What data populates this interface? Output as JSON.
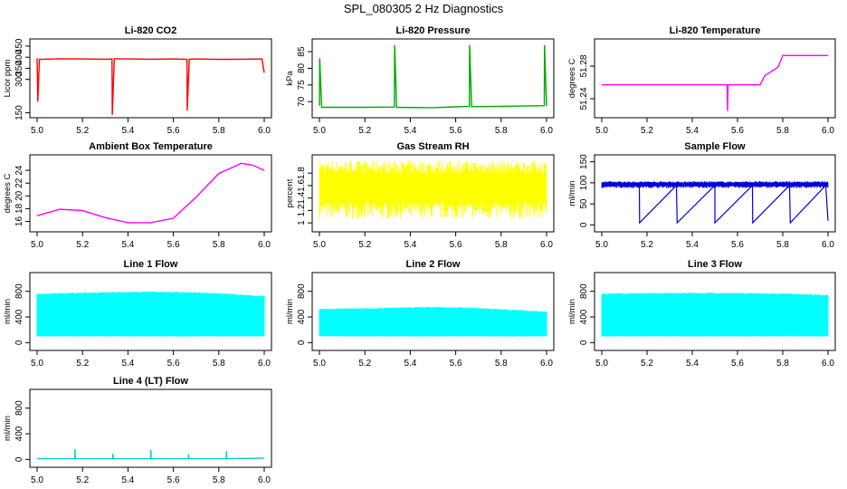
{
  "figure": {
    "title": "SPL_080305  2 Hz Diagnostics"
  },
  "chart_data": [
    {
      "type": "line",
      "title": "Li-820 CO2",
      "ylabel": "Licor ppm",
      "color": "#ff0000",
      "xlim": [
        5.0,
        6.0
      ],
      "ylim": [
        140,
        470
      ],
      "xticks": [
        "5.0",
        "5.2",
        "5.4",
        "5.6",
        "5.8",
        "6.0"
      ],
      "yticks": [
        150,
        300,
        350,
        400,
        450
      ],
      "series": [
        {
          "name": "CO2",
          "x": [
            5.0,
            5.003,
            5.01,
            5.1,
            5.2,
            5.3,
            5.33,
            5.331,
            5.34,
            5.4,
            5.5,
            5.6,
            5.66,
            5.661,
            5.67,
            5.7,
            5.8,
            5.9,
            5.99,
            6.0
          ],
          "y": [
            395,
            200,
            390,
            393,
            392,
            391,
            392,
            140,
            393,
            392,
            391,
            392,
            390,
            160,
            391,
            392,
            390,
            391,
            392,
            330
          ]
        }
      ]
    },
    {
      "type": "line",
      "title": "Li-820 Pressure",
      "ylabel": "kPa",
      "color": "#00aa00",
      "xlim": [
        5.0,
        6.0
      ],
      "ylim": [
        66,
        88
      ],
      "xticks": [
        "5.0",
        "5.2",
        "5.4",
        "5.6",
        "5.8",
        "6.0"
      ],
      "yticks": [
        70,
        75,
        80,
        85
      ],
      "series": [
        {
          "name": "Pressure",
          "x": [
            5.0,
            5.001,
            5.01,
            5.2,
            5.33,
            5.331,
            5.34,
            5.5,
            5.66,
            5.661,
            5.67,
            5.8,
            5.99,
            5.991,
            6.0
          ],
          "y": [
            68.8,
            83,
            68.3,
            68.3,
            68.4,
            87,
            68.3,
            68.2,
            68.6,
            87,
            68.5,
            68.6,
            68.8,
            87,
            68.7
          ]
        }
      ]
    },
    {
      "type": "line",
      "title": "Li-820 Temperature",
      "ylabel": "degrees C",
      "color": "#ff00ff",
      "xlim": [
        5.0,
        6.0
      ],
      "ylim": [
        51.22,
        51.31
      ],
      "xticks": [
        "5.0",
        "5.2",
        "5.4",
        "5.6",
        "5.8",
        "6.0"
      ],
      "yticks": [
        "51.24",
        "51.28"
      ],
      "series": [
        {
          "name": "Temperature",
          "x": [
            5.0,
            5.25,
            5.5,
            5.554,
            5.556,
            5.558,
            5.7,
            5.72,
            5.78,
            5.8,
            6.0
          ],
          "y": [
            51.257,
            51.257,
            51.257,
            51.257,
            51.225,
            51.257,
            51.257,
            51.268,
            51.279,
            51.293,
            51.293
          ]
        }
      ]
    },
    {
      "type": "line",
      "title": "Ambient Box Temperature",
      "ylabel": "degrees C",
      "color": "#ff00ff",
      "xlim": [
        5.0,
        6.0
      ],
      "ylim": [
        14.8,
        26
      ],
      "xticks": [
        "5.0",
        "5.2",
        "5.4",
        "5.6",
        "5.8",
        "6.0"
      ],
      "yticks": [
        16,
        18,
        20,
        22,
        24
      ],
      "series": [
        {
          "name": "Ambient Box Temperature",
          "x": [
            5.0,
            5.1,
            5.2,
            5.3,
            5.4,
            5.5,
            5.6,
            5.7,
            5.8,
            5.9,
            5.95,
            6.0
          ],
          "y": [
            16.9,
            17.9,
            17.7,
            16.6,
            15.8,
            15.8,
            16.5,
            19.8,
            23.5,
            25.1,
            24.8,
            24.0
          ]
        }
      ]
    },
    {
      "type": "line",
      "title": "Gas Stream RH",
      "ylabel": "percent",
      "color": "#ffff00",
      "xlim": [
        5.0,
        6.0
      ],
      "ylim": [
        0.9,
        2.05
      ],
      "xticks": [
        "5.0",
        "5.2",
        "5.4",
        "5.6",
        "5.8",
        "6.0"
      ],
      "yticks": [
        1.0,
        1.2,
        1.4,
        1.6,
        1.8
      ],
      "series": [
        {
          "name": "Gas Stream RH",
          "x": [
            5.0,
            5.2,
            5.4,
            5.6,
            5.8,
            6.0
          ],
          "y": [
            1.6,
            1.6,
            1.6,
            1.6,
            1.6,
            1.6
          ],
          "band": [
            1.2,
            1.9
          ]
        }
      ]
    },
    {
      "type": "line",
      "title": "Sample Flow",
      "ylabel": "ml/min",
      "color": "#0000dd",
      "xlim": [
        5.0,
        6.0
      ],
      "ylim": [
        -10,
        160
      ],
      "xticks": [
        "5.0",
        "5.2",
        "5.4",
        "5.6",
        "5.8",
        "6.0"
      ],
      "yticks": [
        0,
        50,
        100,
        150
      ],
      "series": [
        {
          "name": "Sample Flow",
          "x": [
            5.0,
            5.166,
            5.167,
            5.33,
            5.333,
            5.5,
            5.5,
            5.666,
            5.667,
            5.83,
            5.833,
            5.99,
            6.0
          ],
          "y": [
            94,
            94,
            5,
            94,
            5,
            94,
            5,
            94,
            5,
            94,
            5,
            94,
            10
          ],
          "band": [
            90,
            102
          ]
        }
      ]
    },
    {
      "type": "line",
      "title": "Line 1 Flow",
      "ylabel": "ml/min",
      "color": "#00ffff",
      "xlim": [
        5.0,
        6.0
      ],
      "ylim": [
        -80,
        1050
      ],
      "xticks": [
        "5.0",
        "5.2",
        "5.4",
        "5.6",
        "5.8",
        "6.0"
      ],
      "yticks": [
        0,
        400,
        800
      ],
      "series": [
        {
          "name": "Line 1 Flow",
          "x": [
            5.0,
            5.17,
            5.33,
            5.5,
            5.67,
            5.83,
            6.0
          ],
          "y": [
            760,
            770,
            780,
            790,
            780,
            760,
            720
          ],
          "low": 100
        }
      ]
    },
    {
      "type": "line",
      "title": "Line 2 Flow",
      "ylabel": "ml/min",
      "color": "#00ffff",
      "xlim": [
        5.0,
        6.0
      ],
      "ylim": [
        -80,
        1050
      ],
      "xticks": [
        "5.0",
        "5.2",
        "5.4",
        "5.6",
        "5.8",
        "6.0"
      ],
      "yticks": [
        0,
        400,
        800
      ],
      "series": [
        {
          "name": "Line 2 Flow",
          "x": [
            5.0,
            5.17,
            5.33,
            5.5,
            5.67,
            5.83,
            6.0
          ],
          "y": [
            520,
            530,
            540,
            550,
            540,
            510,
            480
          ],
          "low": 100
        }
      ]
    },
    {
      "type": "line",
      "title": "Line 3 Flow",
      "ylabel": "ml/min",
      "color": "#00ffff",
      "xlim": [
        5.0,
        6.0
      ],
      "ylim": [
        -80,
        1050
      ],
      "xticks": [
        "5.0",
        "5.2",
        "5.4",
        "5.6",
        "5.8",
        "6.0"
      ],
      "yticks": [
        0,
        400,
        800
      ],
      "series": [
        {
          "name": "Line 3 Flow",
          "x": [
            5.0,
            5.17,
            5.33,
            5.5,
            5.67,
            5.83,
            6.0
          ],
          "y": [
            760,
            765,
            770,
            770,
            765,
            760,
            740
          ],
          "low": 100
        }
      ]
    },
    {
      "type": "line",
      "title": "Line 4 (LT) Flow",
      "ylabel": "ml/min",
      "color": "#00cccc",
      "xlim": [
        5.0,
        6.0
      ],
      "ylim": [
        -80,
        1050
      ],
      "xticks": [
        "5.0",
        "5.2",
        "5.4",
        "5.6",
        "5.8",
        "6.0"
      ],
      "yticks": [
        0,
        400,
        800
      ],
      "series": [
        {
          "name": "Line 4 (LT) Flow",
          "x": [
            5.0,
            5.166,
            5.167,
            5.168,
            5.333,
            5.334,
            5.335,
            5.5,
            5.501,
            5.502,
            5.666,
            5.667,
            5.668,
            5.833,
            5.834,
            5.835,
            6.0
          ],
          "y": [
            10,
            10,
            160,
            10,
            10,
            90,
            10,
            10,
            150,
            10,
            10,
            80,
            10,
            10,
            130,
            10,
            20
          ]
        }
      ]
    }
  ]
}
